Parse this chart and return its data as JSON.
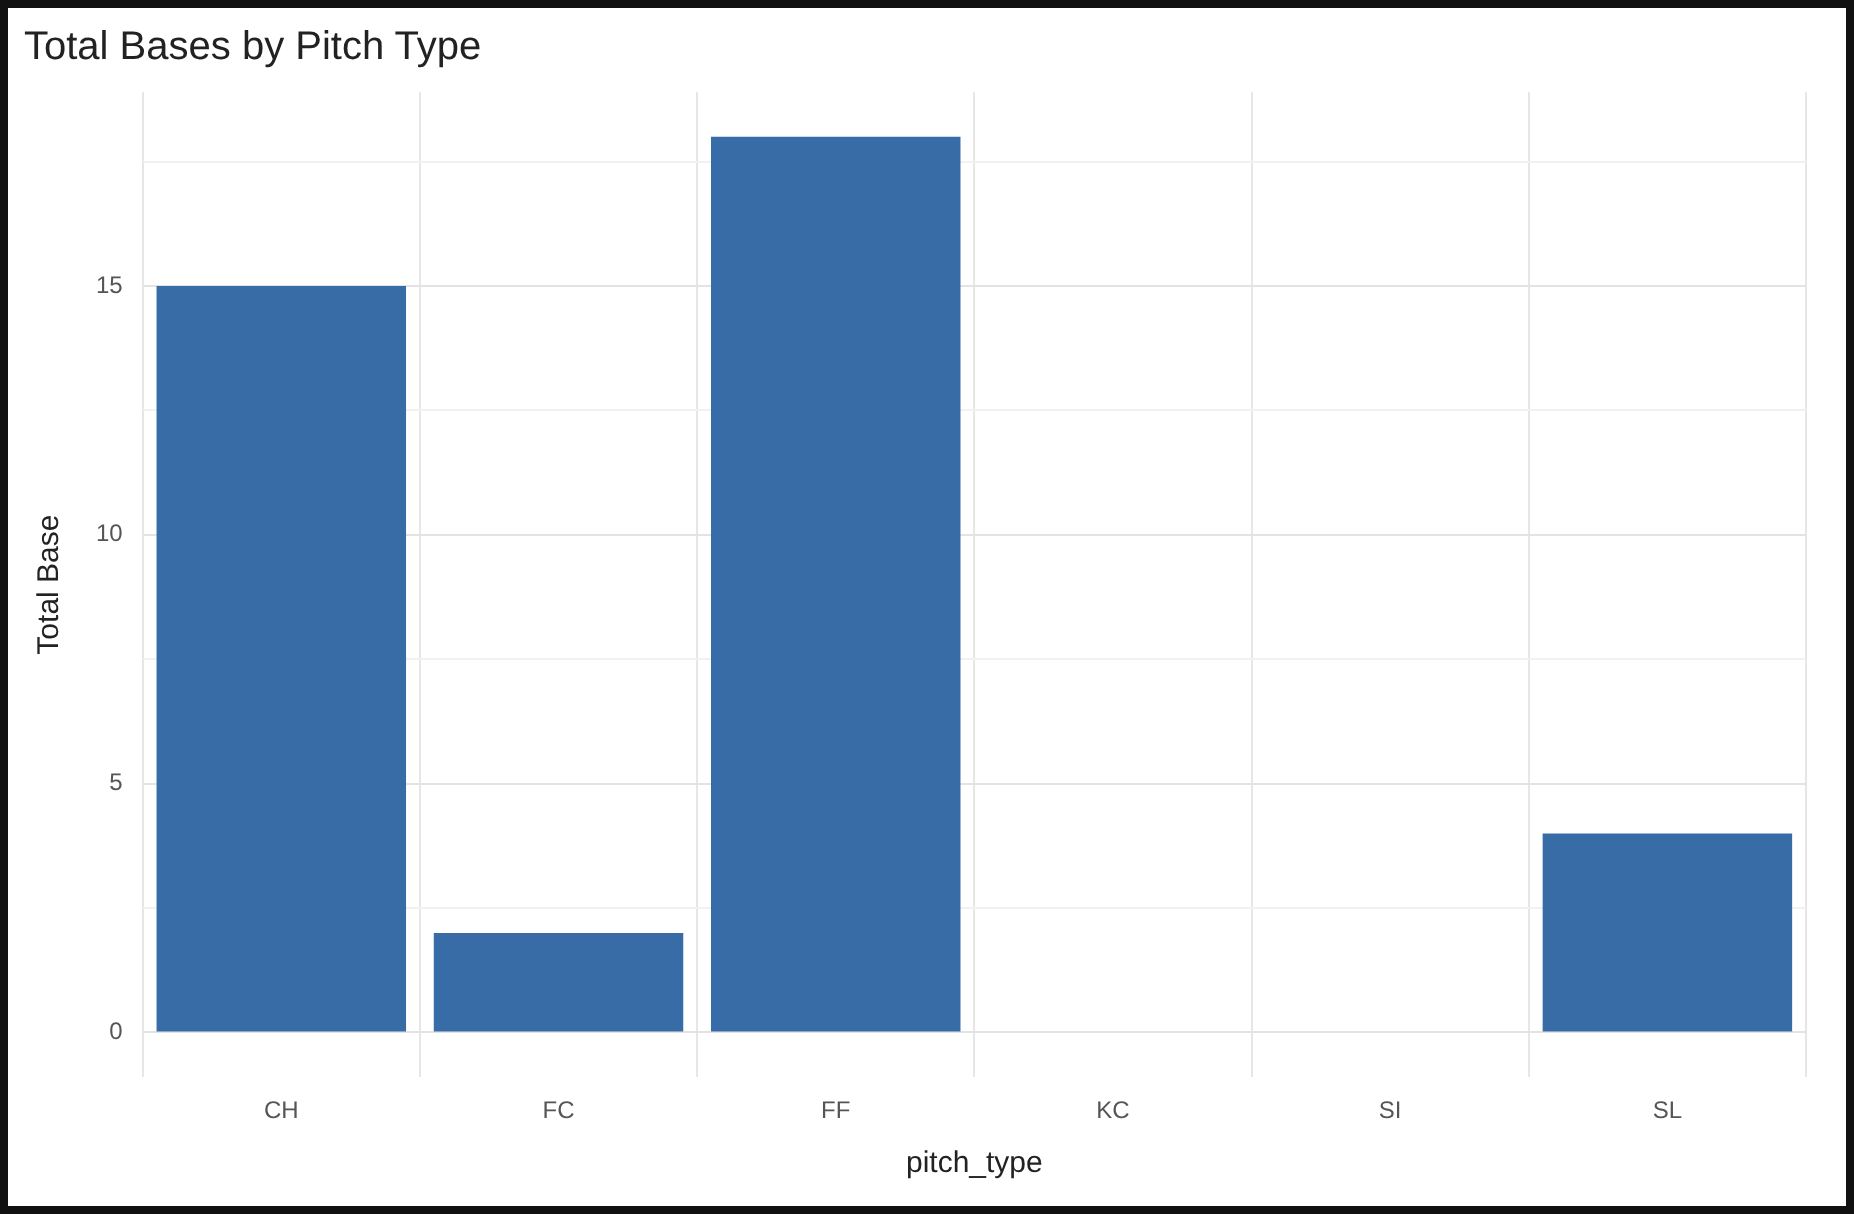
{
  "chart_data": {
    "type": "bar",
    "title": "Total Bases by Pitch Type",
    "xlabel": "pitch_type",
    "ylabel": "Total Base",
    "categories": [
      "CH",
      "FC",
      "FF",
      "KC",
      "SI",
      "SL"
    ],
    "values": [
      15,
      2,
      18,
      0,
      0,
      4
    ],
    "color": "#386ca6",
    "ylim": [
      -0.9,
      18.9
    ],
    "yticks": [
      0,
      {
        "value": 2.5,
        "label": null
      },
      5,
      {
        "value": 7.5,
        "label": null
      },
      10,
      {
        "value": 12.5,
        "label": null
      },
      15,
      {
        "value": 17.5,
        "label": null
      }
    ],
    "grid": true
  }
}
